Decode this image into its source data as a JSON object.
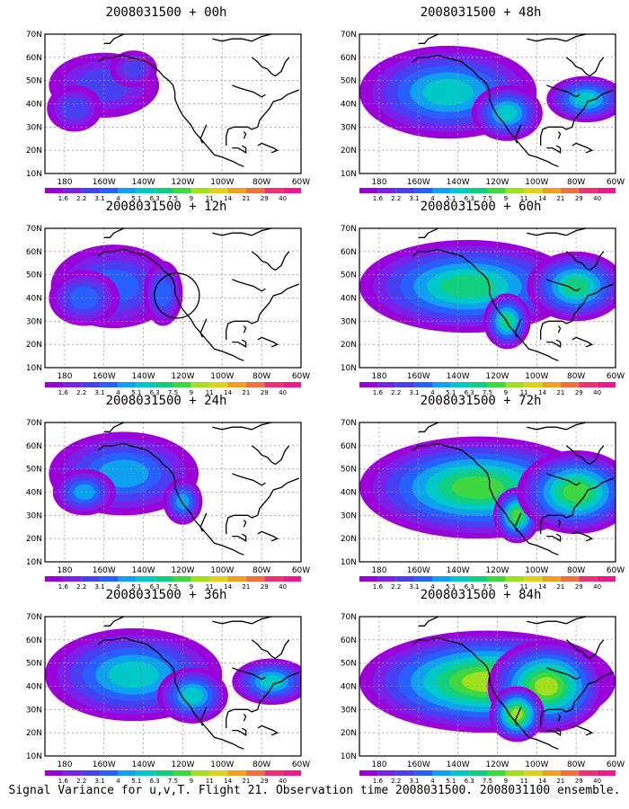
{
  "panels": [
    {
      "title": "2008031500 + 00h",
      "intensity": 0,
      "circle": false
    },
    {
      "title": "2008031500 + 12h",
      "intensity": 1,
      "circle": true
    },
    {
      "title": "2008031500 + 24h",
      "intensity": 2,
      "circle": false
    },
    {
      "title": "2008031500 + 36h",
      "intensity": 3,
      "circle": false
    },
    {
      "title": "2008031500 + 48h",
      "intensity": 3,
      "circle": false
    },
    {
      "title": "2008031500 + 60h",
      "intensity": 4,
      "circle": false
    },
    {
      "title": "2008031500 + 72h",
      "intensity": 5,
      "circle": false
    },
    {
      "title": "2008031500 + 84h",
      "intensity": 6,
      "circle": false
    }
  ],
  "lat_labels": [
    "70N",
    "60N",
    "50N",
    "40N",
    "30N",
    "20N",
    "10N"
  ],
  "lon_labels": [
    "180",
    "160W",
    "140W",
    "120W",
    "100W",
    "80W",
    "60W"
  ],
  "colorbar": {
    "labels": [
      "1.6",
      "2.2",
      "3.1",
      "4",
      "5.1",
      "6.3",
      "7.5",
      "9",
      "11",
      "14",
      "21",
      "29",
      "40"
    ],
    "colors": [
      "#9a00d8",
      "#7a20e8",
      "#4840f0",
      "#2860ff",
      "#10a0f0",
      "#00c8c8",
      "#10d080",
      "#40d840",
      "#a0e020",
      "#e0d020",
      "#f0a020",
      "#f07040",
      "#f03070",
      "#f01890"
    ]
  },
  "caption": "Signal Variance for u,v,T. Flight 21. Observation time 2008031500. 2008031100 ensemble."
}
